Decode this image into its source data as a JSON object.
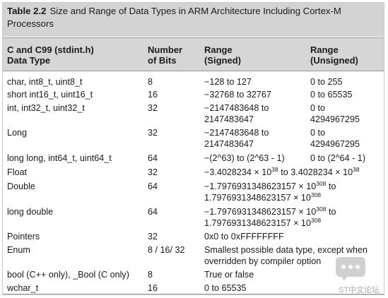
{
  "caption": {
    "number": "Table 2.2",
    "text": "Size and Range of Data Types in ARM Architecture Including Cortex-M Processors"
  },
  "columns": [
    {
      "line1": "C and C99 (stdint.h)",
      "line2": "Data Type"
    },
    {
      "line1": "Number",
      "line2": "of Bits"
    },
    {
      "line1": "Range",
      "line2": "(Signed)"
    },
    {
      "line1": "Range",
      "line2": "(Unsigned)"
    }
  ],
  "rows": [
    {
      "type": "char, int8_t, uint8_t",
      "bits": "8",
      "signed": "−128 to 127",
      "unsigned": "0 to 255"
    },
    {
      "type": "short int16_t, uint16_t",
      "bits": "16",
      "signed": "−32768 to 32767",
      "unsigned": "0 to 65535"
    },
    {
      "type": "int, int32_t, uint32_t",
      "bits": "32",
      "signed_line1": "−2147483648 to",
      "signed_line2": "2147483647",
      "unsigned_line1": "0 to",
      "unsigned_line2": "4294967295"
    },
    {
      "type": "Long",
      "bits": "32",
      "signed_line1": "−2147483648 to",
      "signed_line2": "2147483647",
      "unsigned_line1": "0 to",
      "unsigned_line2": "4294967295"
    },
    {
      "type": "long long, int64_t, uint64_t",
      "bits": "64",
      "signed": "−(2^63) to (2^63 - 1)",
      "unsigned": "0 to (2^64 - 1)"
    },
    {
      "type": "Float",
      "bits": "32",
      "signed_a": "−3.4028234 × 10",
      "signed_a_exp": "38",
      "signed_b": " to 3.4028234 × 10",
      "signed_b_exp": "38"
    },
    {
      "type": "Double",
      "bits": "64",
      "signed_a": "−1.7976931348623157 × 10",
      "signed_a_exp": "308",
      "signed_a_suffix": " to",
      "signed_b": "1.7976931348623157 × 10",
      "signed_b_exp": "308"
    },
    {
      "type": "long double",
      "bits": "64",
      "signed_a": "−1.7976931348623157 × 10",
      "signed_a_exp": "308",
      "signed_a_suffix": " to",
      "signed_b": "1.7976931348623157 × 10",
      "signed_b_exp": "308"
    },
    {
      "type": "Pointers",
      "bits": "32",
      "signed": "0x0 to 0xFFFFFFFF"
    },
    {
      "type": "Enum",
      "bits": "8 / 16/ 32",
      "signed_line1": "Smallest possible data type, except when",
      "signed_line2": "overridden by compiler option"
    },
    {
      "type": "bool (C++ only), _Bool (C only)",
      "bits": "8",
      "signed": "True or false"
    },
    {
      "type": "wchar_t",
      "bits": "16",
      "signed": "0 to 65535"
    }
  ],
  "watermark": {
    "text": "ST中文论坛",
    "icon": "chat-bubble-icon"
  }
}
